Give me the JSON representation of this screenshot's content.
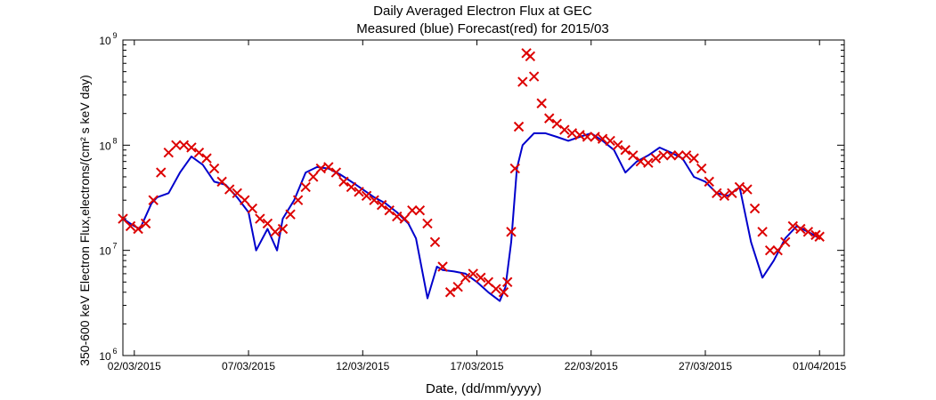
{
  "chart_data": {
    "type": "line",
    "title": "Daily Averaged Electron Flux at GEC",
    "subtitle": "Measured (blue) Forecast(red) for 2015/03",
    "xlabel": "Date, (dd/mm/yyyy)",
    "ylabel": "350-600 keV Electron Flux,electrons/(cm² s keV day)",
    "y_scale": "log",
    "ylim": [
      1000000,
      1000000000
    ],
    "xlim": [
      "2015-03-01T12:00",
      "2015-04-02T02:00"
    ],
    "x_ticks": [
      {
        "date": "2015-03-02",
        "label": "02/03/2015"
      },
      {
        "date": "2015-03-07",
        "label": "07/03/2015"
      },
      {
        "date": "2015-03-12",
        "label": "12/03/2015"
      },
      {
        "date": "2015-03-17",
        "label": "17/03/2015"
      },
      {
        "date": "2015-03-22",
        "label": "22/03/2015"
      },
      {
        "date": "2015-03-27",
        "label": "27/03/2015"
      },
      {
        "date": "2015-04-01",
        "label": "01/04/2015"
      }
    ],
    "y_ticks": [
      {
        "value": 1000000,
        "base": "10",
        "exp": "6"
      },
      {
        "value": 10000000,
        "base": "10",
        "exp": "7"
      },
      {
        "value": 100000000,
        "base": "10",
        "exp": "8"
      },
      {
        "value": 1000000000,
        "base": "10",
        "exp": "9"
      }
    ],
    "grid": false,
    "series": [
      {
        "name": "Measured",
        "marker": "line",
        "color": "#0000cc",
        "x": [
          "2015-03-01T12:00",
          "2015-03-02T00:00",
          "2015-03-02T06:00",
          "2015-03-02T18:00",
          "2015-03-03T00:00",
          "2015-03-03T12:00",
          "2015-03-04T00:00",
          "2015-03-04T12:00",
          "2015-03-05T00:00",
          "2015-03-05T12:00",
          "2015-03-06T00:00",
          "2015-03-06T12:00",
          "2015-03-07T00:00",
          "2015-03-07T08:00",
          "2015-03-07T20:00",
          "2015-03-08T06:00",
          "2015-03-08T12:00",
          "2015-03-09T00:00",
          "2015-03-09T12:00",
          "2015-03-10T00:00",
          "2015-03-10T12:00",
          "2015-03-11T00:00",
          "2015-03-11T12:00",
          "2015-03-12T00:00",
          "2015-03-12T12:00",
          "2015-03-13T00:00",
          "2015-03-13T12:00",
          "2015-03-14T00:00",
          "2015-03-14T08:00",
          "2015-03-14T20:00",
          "2015-03-15T06:00",
          "2015-03-15T12:00",
          "2015-03-16T00:00",
          "2015-03-16T12:00",
          "2015-03-17T00:00",
          "2015-03-17T12:00",
          "2015-03-18T00:00",
          "2015-03-18T06:00",
          "2015-03-18T12:00",
          "2015-03-18T18:00",
          "2015-03-19T00:00",
          "2015-03-19T12:00",
          "2015-03-20T00:00",
          "2015-03-20T12:00",
          "2015-03-21T00:00",
          "2015-03-21T12:00",
          "2015-03-22T00:00",
          "2015-03-22T12:00",
          "2015-03-23T00:00",
          "2015-03-23T12:00",
          "2015-03-24T00:00",
          "2015-03-24T12:00",
          "2015-03-25T00:00",
          "2015-03-25T12:00",
          "2015-03-26T00:00",
          "2015-03-26T12:00",
          "2015-03-27T00:00",
          "2015-03-27T12:00",
          "2015-03-28T00:00",
          "2015-03-28T12:00",
          "2015-03-29T00:00",
          "2015-03-29T12:00",
          "2015-03-30T00:00",
          "2015-03-30T12:00",
          "2015-03-31T00:00",
          "2015-03-31T12:00",
          "2015-04-01T00:00"
        ],
        "values": [
          20000000.0,
          17000000.0,
          16000000.0,
          28000000.0,
          32000000.0,
          35000000.0,
          55000000.0,
          78000000.0,
          65000000.0,
          45000000.0,
          42000000.0,
          32000000.0,
          23000000.0,
          10000000.0,
          16000000.0,
          10000000.0,
          20000000.0,
          30000000.0,
          55000000.0,
          62000000.0,
          60000000.0,
          53000000.0,
          45000000.0,
          38000000.0,
          32000000.0,
          28000000.0,
          23000000.0,
          18000000.0,
          13000000.0,
          3500000.0,
          7000000.0,
          6500000.0,
          6300000.0,
          6000000.0,
          5000000.0,
          4000000.0,
          3300000.0,
          4500000.0,
          12000000.0,
          60000000.0,
          100000000.0,
          130000000.0,
          130000000.0,
          120000000.0,
          110000000.0,
          120000000.0,
          130000000.0,
          110000000.0,
          90000000.0,
          55000000.0,
          70000000.0,
          80000000.0,
          95000000.0,
          85000000.0,
          75000000.0,
          50000000.0,
          45000000.0,
          35000000.0,
          33000000.0,
          40000000.0,
          12000000.0,
          5500000.0,
          8000000.0,
          13000000.0,
          17000000.0,
          15000000.0,
          13000000.0
        ]
      },
      {
        "name": "Forecast",
        "marker": "x",
        "color": "#dd0000",
        "x": [
          "2015-03-01T12:00",
          "2015-03-01T20:00",
          "2015-03-02T04:00",
          "2015-03-02T12:00",
          "2015-03-02T20:00",
          "2015-03-03T04:00",
          "2015-03-03T12:00",
          "2015-03-03T20:00",
          "2015-03-04T04:00",
          "2015-03-04T12:00",
          "2015-03-04T20:00",
          "2015-03-05T04:00",
          "2015-03-05T12:00",
          "2015-03-05T20:00",
          "2015-03-06T04:00",
          "2015-03-06T12:00",
          "2015-03-06T20:00",
          "2015-03-07T04:00",
          "2015-03-07T12:00",
          "2015-03-07T20:00",
          "2015-03-08T04:00",
          "2015-03-08T12:00",
          "2015-03-08T20:00",
          "2015-03-09T04:00",
          "2015-03-09T12:00",
          "2015-03-09T20:00",
          "2015-03-10T04:00",
          "2015-03-10T12:00",
          "2015-03-10T20:00",
          "2015-03-11T04:00",
          "2015-03-11T12:00",
          "2015-03-11T20:00",
          "2015-03-12T04:00",
          "2015-03-12T12:00",
          "2015-03-12T20:00",
          "2015-03-13T04:00",
          "2015-03-13T12:00",
          "2015-03-13T20:00",
          "2015-03-14T04:00",
          "2015-03-14T12:00",
          "2015-03-14T20:00",
          "2015-03-15T04:00",
          "2015-03-15T12:00",
          "2015-03-15T20:00",
          "2015-03-16T04:00",
          "2015-03-16T12:00",
          "2015-03-16T20:00",
          "2015-03-17T04:00",
          "2015-03-17T12:00",
          "2015-03-17T20:00",
          "2015-03-18T04:00",
          "2015-03-18T08:00",
          "2015-03-18T12:00",
          "2015-03-18T16:00",
          "2015-03-18T20:00",
          "2015-03-19T00:00",
          "2015-03-19T04:00",
          "2015-03-19T08:00",
          "2015-03-19T12:00",
          "2015-03-19T20:00",
          "2015-03-20T04:00",
          "2015-03-20T12:00",
          "2015-03-20T20:00",
          "2015-03-21T04:00",
          "2015-03-21T12:00",
          "2015-03-21T20:00",
          "2015-03-22T04:00",
          "2015-03-22T12:00",
          "2015-03-22T20:00",
          "2015-03-23T04:00",
          "2015-03-23T12:00",
          "2015-03-23T20:00",
          "2015-03-24T04:00",
          "2015-03-24T12:00",
          "2015-03-24T20:00",
          "2015-03-25T04:00",
          "2015-03-25T12:00",
          "2015-03-25T20:00",
          "2015-03-26T04:00",
          "2015-03-26T12:00",
          "2015-03-26T20:00",
          "2015-03-27T04:00",
          "2015-03-27T12:00",
          "2015-03-27T20:00",
          "2015-03-28T04:00",
          "2015-03-28T12:00",
          "2015-03-28T20:00",
          "2015-03-29T04:00",
          "2015-03-29T12:00",
          "2015-03-29T20:00",
          "2015-03-30T04:00",
          "2015-03-30T12:00",
          "2015-03-30T20:00",
          "2015-03-31T04:00",
          "2015-03-31T12:00",
          "2015-03-31T20:00",
          "2015-04-01T00:00"
        ],
        "values": [
          20000000.0,
          17000000.0,
          16000000.0,
          18000000.0,
          30000000.0,
          55000000.0,
          85000000.0,
          100000000.0,
          100000000.0,
          95000000.0,
          85000000.0,
          75000000.0,
          60000000.0,
          45000000.0,
          38000000.0,
          35000000.0,
          30000000.0,
          25000000.0,
          20000000.0,
          18000000.0,
          15000000.0,
          16000000.0,
          22000000.0,
          30000000.0,
          40000000.0,
          50000000.0,
          60000000.0,
          62000000.0,
          55000000.0,
          45000000.0,
          40000000.0,
          36000000.0,
          33000000.0,
          30000000.0,
          27000000.0,
          24000000.0,
          21000000.0,
          20000000.0,
          24000000.0,
          24000000.0,
          18000000.0,
          12000000.0,
          7000000.0,
          4000000.0,
          4500000.0,
          5500000.0,
          6000000.0,
          5500000.0,
          5000000.0,
          4300000.0,
          4000000.0,
          5000000.0,
          15000000.0,
          60000000.0,
          150000000.0,
          400000000.0,
          750000000.0,
          700000000.0,
          450000000.0,
          250000000.0,
          180000000.0,
          160000000.0,
          140000000.0,
          130000000.0,
          125000000.0,
          120000000.0,
          120000000.0,
          115000000.0,
          110000000.0,
          100000000.0,
          90000000.0,
          80000000.0,
          70000000.0,
          68000000.0,
          75000000.0,
          80000000.0,
          80000000.0,
          80000000.0,
          80000000.0,
          75000000.0,
          60000000.0,
          45000000.0,
          35000000.0,
          33000000.0,
          35000000.0,
          40000000.0,
          38000000.0,
          25000000.0,
          15000000.0,
          10000000.0,
          10000000.0,
          12000000.0,
          17000000.0,
          16000000.0,
          15000000.0,
          14000000.0,
          13500000.0
        ]
      }
    ]
  }
}
